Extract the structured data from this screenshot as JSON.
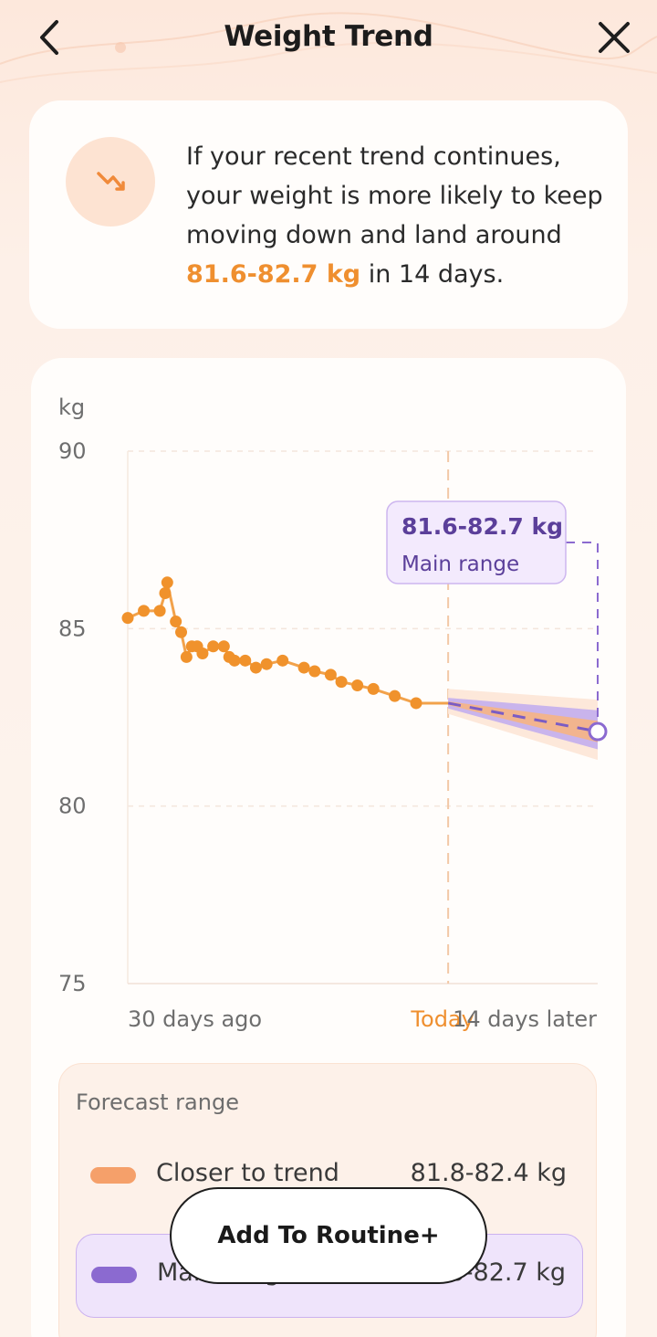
{
  "header": {
    "title": "Weight Trend"
  },
  "summary": {
    "text_before": "If your recent trend continues, your weight is more likely to keep moving down and land around ",
    "highlight": "81.6-82.7 kg",
    "text_after": " in 14 days."
  },
  "chart_data": {
    "type": "line",
    "ylabel": "kg",
    "ylim": [
      75,
      90
    ],
    "yticks": [
      "90",
      "85",
      "80",
      "75"
    ],
    "x_labels": [
      "30 days ago",
      "Today",
      "14 days later"
    ],
    "xlim": [
      -30,
      14
    ],
    "actual": {
      "x": [
        -30,
        -28.5,
        -27,
        -26.5,
        -26.3,
        -25.5,
        -25,
        -24.5,
        -24,
        -23.5,
        -23,
        -22,
        -21,
        -20.5,
        -20,
        -19,
        -18,
        -17,
        -15.5,
        -13.5,
        -12.5,
        -11,
        -10,
        -8.5,
        -7,
        -5,
        -3
      ],
      "y": [
        85.3,
        85.5,
        85.5,
        86.0,
        86.3,
        85.2,
        84.9,
        84.2,
        84.5,
        84.5,
        84.3,
        84.5,
        84.5,
        84.2,
        84.1,
        84.1,
        83.9,
        84.0,
        84.1,
        83.9,
        83.8,
        83.7,
        83.5,
        83.4,
        83.3,
        83.1,
        82.9
      ]
    },
    "forecast": {
      "x": [
        0,
        14
      ],
      "median": [
        82.9,
        82.1
      ],
      "main_range": [
        [
          82.9,
          82.9
        ],
        [
          81.6,
          82.7
        ]
      ],
      "closer_range": [
        [
          82.9,
          82.9
        ],
        [
          81.8,
          82.4
        ]
      ],
      "wide_range": [
        [
          82.6,
          83.3
        ],
        [
          81.3,
          83.0
        ]
      ]
    },
    "tooltip": {
      "value": "81.6-82.7 kg",
      "label": "Main range"
    }
  },
  "legend": {
    "title": "Forecast range",
    "rows": [
      {
        "label": "Closer to trend",
        "value": "81.8-82.4 kg",
        "color": "#f5a06a"
      },
      {
        "label": "Main range",
        "value": "81.6-82.7 kg",
        "color": "#8b6ad0"
      }
    ]
  },
  "cta": {
    "label": "Add To Routine+"
  },
  "colors": {
    "accent": "#ef8f2f",
    "purple": "#8b6ad0",
    "point": "#f0922c"
  },
  "icons": {
    "back": "chevron-left-icon",
    "close": "close-icon",
    "trend": "trend-down-icon"
  }
}
